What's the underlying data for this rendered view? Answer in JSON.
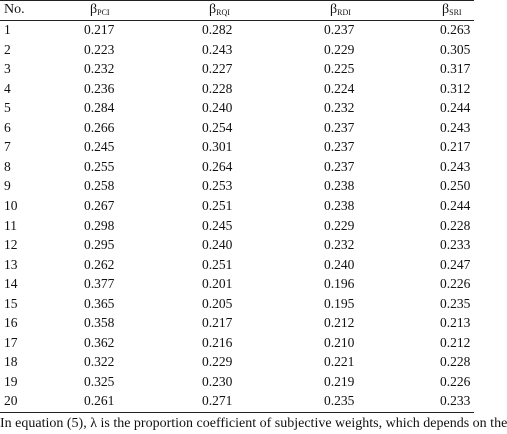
{
  "table": {
    "headers": {
      "no": "No.",
      "pci": {
        "base": "β",
        "sub": "PCI"
      },
      "rqi": {
        "base": "β",
        "sub": "RQI"
      },
      "rdi": {
        "base": "β",
        "sub": "RDI"
      },
      "sri": {
        "base": "β",
        "sub": "SRI"
      }
    },
    "rows": [
      {
        "no": "1",
        "pci": "0.217",
        "rqi": "0.282",
        "rdi": "0.237",
        "sri": "0.263"
      },
      {
        "no": "2",
        "pci": "0.223",
        "rqi": "0.243",
        "rdi": "0.229",
        "sri": "0.305"
      },
      {
        "no": "3",
        "pci": "0.232",
        "rqi": "0.227",
        "rdi": "0.225",
        "sri": "0.317"
      },
      {
        "no": "4",
        "pci": "0.236",
        "rqi": "0.228",
        "rdi": "0.224",
        "sri": "0.312"
      },
      {
        "no": "5",
        "pci": "0.284",
        "rqi": "0.240",
        "rdi": "0.232",
        "sri": "0.244"
      },
      {
        "no": "6",
        "pci": "0.266",
        "rqi": "0.254",
        "rdi": "0.237",
        "sri": "0.243"
      },
      {
        "no": "7",
        "pci": "0.245",
        "rqi": "0.301",
        "rdi": "0.237",
        "sri": "0.217"
      },
      {
        "no": "8",
        "pci": "0.255",
        "rqi": "0.264",
        "rdi": "0.237",
        "sri": "0.243"
      },
      {
        "no": "9",
        "pci": "0.258",
        "rqi": "0.253",
        "rdi": "0.238",
        "sri": "0.250"
      },
      {
        "no": "10",
        "pci": "0.267",
        "rqi": "0.251",
        "rdi": "0.238",
        "sri": "0.244"
      },
      {
        "no": "11",
        "pci": "0.298",
        "rqi": "0.245",
        "rdi": "0.229",
        "sri": "0.228"
      },
      {
        "no": "12",
        "pci": "0.295",
        "rqi": "0.240",
        "rdi": "0.232",
        "sri": "0.233"
      },
      {
        "no": "13",
        "pci": "0.262",
        "rqi": "0.251",
        "rdi": "0.240",
        "sri": "0.247"
      },
      {
        "no": "14",
        "pci": "0.377",
        "rqi": "0.201",
        "rdi": "0.196",
        "sri": "0.226"
      },
      {
        "no": "15",
        "pci": "0.365",
        "rqi": "0.205",
        "rdi": "0.195",
        "sri": "0.235"
      },
      {
        "no": "16",
        "pci": "0.358",
        "rqi": "0.217",
        "rdi": "0.212",
        "sri": "0.213"
      },
      {
        "no": "17",
        "pci": "0.362",
        "rqi": "0.216",
        "rdi": "0.210",
        "sri": "0.212"
      },
      {
        "no": "18",
        "pci": "0.322",
        "rqi": "0.229",
        "rdi": "0.221",
        "sri": "0.228"
      },
      {
        "no": "19",
        "pci": "0.325",
        "rqi": "0.230",
        "rdi": "0.219",
        "sri": "0.226"
      },
      {
        "no": "20",
        "pci": "0.261",
        "rqi": "0.271",
        "rdi": "0.235",
        "sri": "0.233"
      }
    ]
  },
  "footer_text": "In equation (5), λ is the proportion coefficient of subjective weights, which depends on the"
}
